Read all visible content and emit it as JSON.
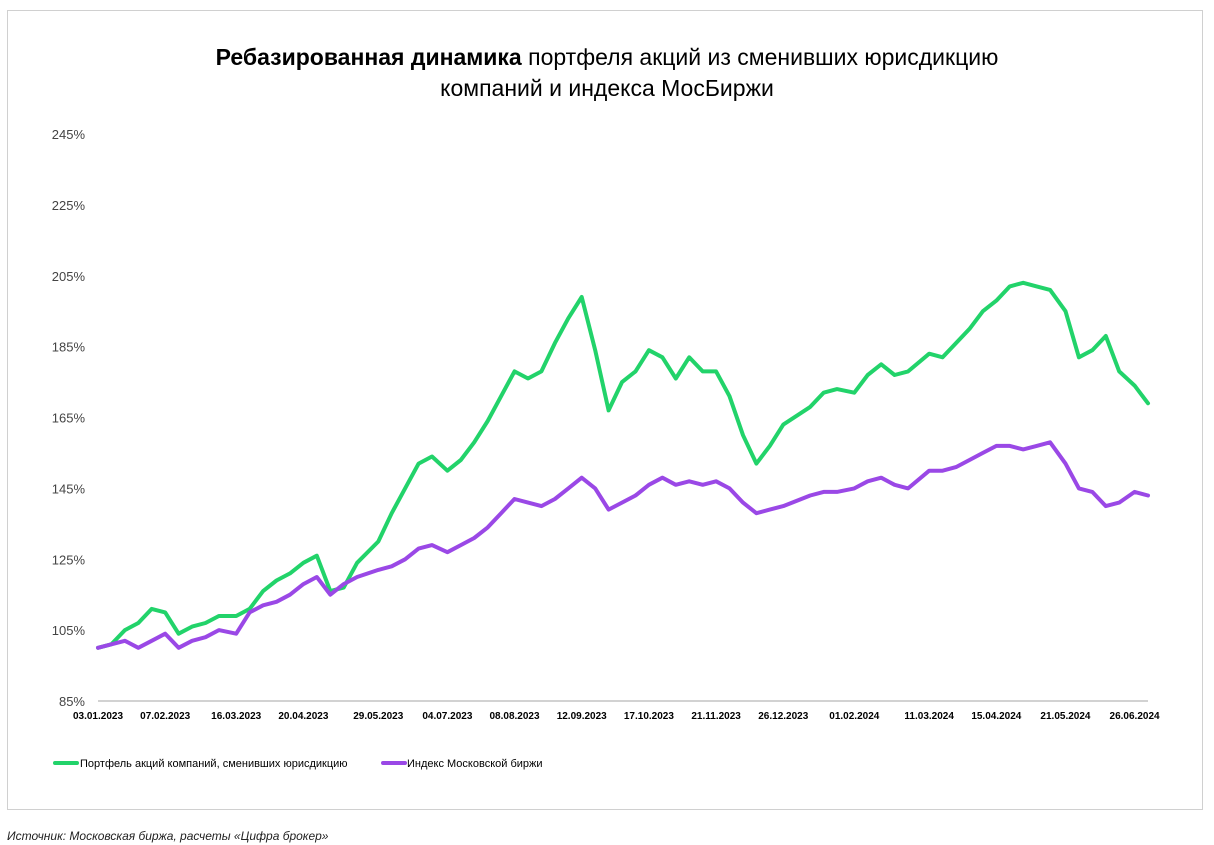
{
  "title_bold": "Ребазированная динамика",
  "title_rest_line1": "портфеля акций из сменивших юрисдикцию",
  "title_line2": "компаний и индекса МосБиржи",
  "source": "Источник: Московская биржа, расчеты «Цифра брокер»",
  "colors": {
    "green": "#22d36a",
    "purple": "#9a48e6",
    "axis": "#a6a6a6"
  },
  "chart_data": {
    "type": "line",
    "title": "Ребазированная динамика портфеля акций из сменивших юрисдикцию компаний и индекса МосБиржи",
    "ylim": [
      85,
      245
    ],
    "yticks": [
      85,
      105,
      125,
      145,
      165,
      185,
      205,
      225,
      245
    ],
    "ytick_labels": [
      "85%",
      "105%",
      "125%",
      "145%",
      "165%",
      "185%",
      "205%",
      "225%",
      "245%"
    ],
    "xtick_labels": [
      "03.01.2023",
      "07.02.2023",
      "16.03.2023",
      "20.04.2023",
      "29.05.2023",
      "04.07.2023",
      "08.08.2023",
      "12.09.2023",
      "17.10.2023",
      "21.11.2023",
      "26.12.2023",
      "01.02.2024",
      "11.03.2024",
      "15.04.2024",
      "21.05.2024",
      "26.06.2024"
    ],
    "x_range": [
      "03.01.2023",
      "03.07.2024"
    ],
    "grid": false,
    "legend": "bottom-left",
    "series": [
      {
        "name": "Портфель акций компаний, сменивших юрисдикцию",
        "color": "#22d36a",
        "points": [
          [
            "03.01.2023",
            100
          ],
          [
            "10.01.2023",
            101
          ],
          [
            "17.01.2023",
            105
          ],
          [
            "24.01.2023",
            107
          ],
          [
            "31.01.2023",
            111
          ],
          [
            "07.02.2023",
            110
          ],
          [
            "14.02.2023",
            104
          ],
          [
            "21.02.2023",
            106
          ],
          [
            "28.02.2023",
            107
          ],
          [
            "07.03.2023",
            109
          ],
          [
            "16.03.2023",
            109
          ],
          [
            "23.03.2023",
            111
          ],
          [
            "30.03.2023",
            116
          ],
          [
            "06.04.2023",
            119
          ],
          [
            "13.04.2023",
            121
          ],
          [
            "20.04.2023",
            124
          ],
          [
            "27.04.2023",
            126
          ],
          [
            "04.05.2023",
            116
          ],
          [
            "11.05.2023",
            117
          ],
          [
            "18.05.2023",
            124
          ],
          [
            "29.05.2023",
            130
          ],
          [
            "05.06.2023",
            138
          ],
          [
            "12.06.2023",
            145
          ],
          [
            "19.06.2023",
            152
          ],
          [
            "26.06.2023",
            154
          ],
          [
            "04.07.2023",
            150
          ],
          [
            "11.07.2023",
            153
          ],
          [
            "18.07.2023",
            158
          ],
          [
            "25.07.2023",
            164
          ],
          [
            "01.08.2023",
            171
          ],
          [
            "08.08.2023",
            178
          ],
          [
            "15.08.2023",
            176
          ],
          [
            "22.08.2023",
            178
          ],
          [
            "29.08.2023",
            186
          ],
          [
            "05.09.2023",
            193
          ],
          [
            "12.09.2023",
            199
          ],
          [
            "19.09.2023",
            184
          ],
          [
            "26.09.2023",
            167
          ],
          [
            "03.10.2023",
            175
          ],
          [
            "10.10.2023",
            178
          ],
          [
            "17.10.2023",
            184
          ],
          [
            "24.10.2023",
            182
          ],
          [
            "31.10.2023",
            176
          ],
          [
            "07.11.2023",
            182
          ],
          [
            "14.11.2023",
            178
          ],
          [
            "21.11.2023",
            178
          ],
          [
            "28.11.2023",
            171
          ],
          [
            "05.12.2023",
            160
          ],
          [
            "12.12.2023",
            152
          ],
          [
            "19.12.2023",
            157
          ],
          [
            "26.12.2023",
            163
          ],
          [
            "09.01.2024",
            168
          ],
          [
            "16.01.2024",
            172
          ],
          [
            "23.01.2024",
            173
          ],
          [
            "01.02.2024",
            172
          ],
          [
            "08.02.2024",
            177
          ],
          [
            "15.02.2024",
            180
          ],
          [
            "22.02.2024",
            177
          ],
          [
            "29.02.2024",
            178
          ],
          [
            "11.03.2024",
            183
          ],
          [
            "18.03.2024",
            182
          ],
          [
            "25.03.2024",
            186
          ],
          [
            "01.04.2024",
            190
          ],
          [
            "08.04.2024",
            195
          ],
          [
            "15.04.2024",
            198
          ],
          [
            "22.04.2024",
            202
          ],
          [
            "29.04.2024",
            203
          ],
          [
            "06.05.2024",
            202
          ],
          [
            "13.05.2024",
            201
          ],
          [
            "21.05.2024",
            195
          ],
          [
            "28.05.2024",
            182
          ],
          [
            "04.06.2024",
            184
          ],
          [
            "11.06.2024",
            188
          ],
          [
            "18.06.2024",
            178
          ],
          [
            "26.06.2024",
            174
          ],
          [
            "03.07.2024",
            169
          ]
        ]
      },
      {
        "name": "Индекс Московской биржи",
        "color": "#9a48e6",
        "points": [
          [
            "03.01.2023",
            100
          ],
          [
            "10.01.2023",
            101
          ],
          [
            "17.01.2023",
            102
          ],
          [
            "24.01.2023",
            100
          ],
          [
            "31.01.2023",
            102
          ],
          [
            "07.02.2023",
            104
          ],
          [
            "14.02.2023",
            100
          ],
          [
            "21.02.2023",
            102
          ],
          [
            "28.02.2023",
            103
          ],
          [
            "07.03.2023",
            105
          ],
          [
            "16.03.2023",
            104
          ],
          [
            "23.03.2023",
            110
          ],
          [
            "30.03.2023",
            112
          ],
          [
            "06.04.2023",
            113
          ],
          [
            "13.04.2023",
            115
          ],
          [
            "20.04.2023",
            118
          ],
          [
            "27.04.2023",
            120
          ],
          [
            "04.05.2023",
            115
          ],
          [
            "11.05.2023",
            118
          ],
          [
            "18.05.2023",
            120
          ],
          [
            "29.05.2023",
            122
          ],
          [
            "05.06.2023",
            123
          ],
          [
            "12.06.2023",
            125
          ],
          [
            "19.06.2023",
            128
          ],
          [
            "26.06.2023",
            129
          ],
          [
            "04.07.2023",
            127
          ],
          [
            "11.07.2023",
            129
          ],
          [
            "18.07.2023",
            131
          ],
          [
            "25.07.2023",
            134
          ],
          [
            "01.08.2023",
            138
          ],
          [
            "08.08.2023",
            142
          ],
          [
            "15.08.2023",
            141
          ],
          [
            "22.08.2023",
            140
          ],
          [
            "29.08.2023",
            142
          ],
          [
            "05.09.2023",
            145
          ],
          [
            "12.09.2023",
            148
          ],
          [
            "19.09.2023",
            145
          ],
          [
            "26.09.2023",
            139
          ],
          [
            "03.10.2023",
            141
          ],
          [
            "10.10.2023",
            143
          ],
          [
            "17.10.2023",
            146
          ],
          [
            "24.10.2023",
            148
          ],
          [
            "31.10.2023",
            146
          ],
          [
            "07.11.2023",
            147
          ],
          [
            "14.11.2023",
            146
          ],
          [
            "21.11.2023",
            147
          ],
          [
            "28.11.2023",
            145
          ],
          [
            "05.12.2023",
            141
          ],
          [
            "12.12.2023",
            138
          ],
          [
            "19.12.2023",
            139
          ],
          [
            "26.12.2023",
            140
          ],
          [
            "09.01.2024",
            143
          ],
          [
            "16.01.2024",
            144
          ],
          [
            "23.01.2024",
            144
          ],
          [
            "01.02.2024",
            145
          ],
          [
            "08.02.2024",
            147
          ],
          [
            "15.02.2024",
            148
          ],
          [
            "22.02.2024",
            146
          ],
          [
            "29.02.2024",
            145
          ],
          [
            "11.03.2024",
            150
          ],
          [
            "18.03.2024",
            150
          ],
          [
            "25.03.2024",
            151
          ],
          [
            "01.04.2024",
            153
          ],
          [
            "08.04.2024",
            155
          ],
          [
            "15.04.2024",
            157
          ],
          [
            "22.04.2024",
            157
          ],
          [
            "29.04.2024",
            156
          ],
          [
            "06.05.2024",
            157
          ],
          [
            "13.05.2024",
            158
          ],
          [
            "21.05.2024",
            152
          ],
          [
            "28.05.2024",
            145
          ],
          [
            "04.06.2024",
            144
          ],
          [
            "11.06.2024",
            140
          ],
          [
            "18.06.2024",
            141
          ],
          [
            "26.06.2024",
            144
          ],
          [
            "03.07.2024",
            143
          ]
        ]
      }
    ]
  }
}
